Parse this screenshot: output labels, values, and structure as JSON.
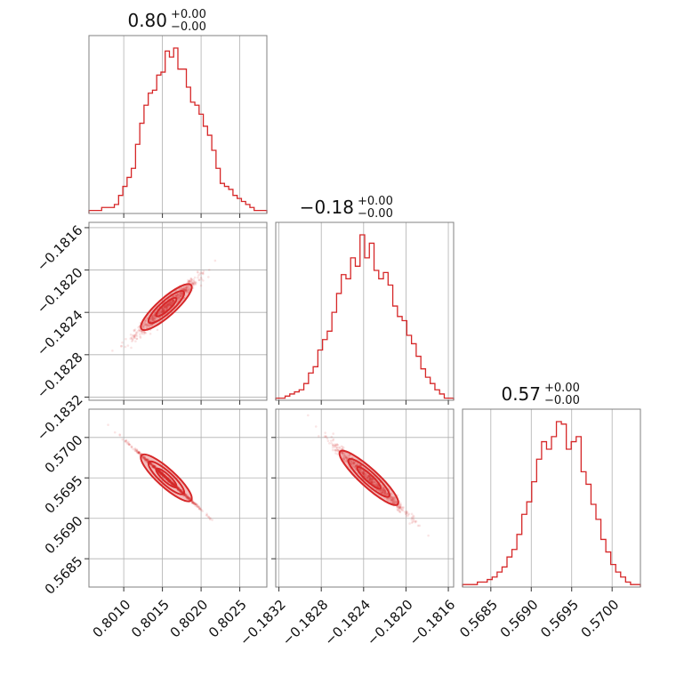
{
  "colors": {
    "series": "#d62728",
    "grid": "#b0b0b0",
    "frame": "#808080",
    "fill": "rgba(214,39,40,0.30)",
    "points": "rgba(214,39,40,0.12)"
  },
  "chart_data": {
    "type": "corner",
    "grid": true,
    "parameters": [
      {
        "title": "0.80",
        "err_plus": "+0.00",
        "err_minus": "−0.00",
        "range": [
          0.80055,
          0.80285
        ],
        "ticks": [
          0.801,
          0.8015,
          0.802,
          0.8025
        ],
        "tick_labels": [
          "0.8010",
          "0.8015",
          "0.8020",
          "0.8025"
        ],
        "hist_counts": [
          1,
          1,
          1,
          2,
          2,
          2,
          3,
          6,
          9,
          12,
          15,
          23,
          30,
          36,
          40,
          41,
          46,
          47,
          54,
          52,
          55,
          48,
          48,
          42,
          37,
          36,
          33,
          29,
          26,
          21,
          15,
          10,
          9,
          8,
          6,
          5,
          4,
          3,
          2,
          1,
          1,
          1
        ]
      },
      {
        "title": "−0.18",
        "err_plus": "+0.00",
        "err_minus": "−0.00",
        "range": [
          -0.18323,
          -0.18155
        ],
        "ticks": [
          -0.1832,
          -0.1828,
          -0.1824,
          -0.182,
          -0.1816
        ],
        "tick_labels": [
          "−0.1832",
          "−0.1828",
          "−0.1824",
          "−0.1820",
          "−0.1816"
        ],
        "hist_counts": [
          1,
          1,
          2,
          3,
          4,
          5,
          8,
          13,
          16,
          24,
          29,
          33,
          42,
          51,
          60,
          58,
          68,
          64,
          79,
          68,
          75,
          62,
          58,
          61,
          55,
          45,
          40,
          38,
          31,
          27,
          21,
          15,
          11,
          8,
          5,
          3,
          1,
          1
        ]
      },
      {
        "title": "0.57",
        "err_plus": "+0.00",
        "err_minus": "−0.00",
        "range": [
          0.56815,
          0.57035
        ],
        "ticks": [
          0.5685,
          0.569,
          0.5695,
          0.57
        ],
        "tick_labels": [
          "0.5685",
          "0.5690",
          "0.5695",
          "0.5700"
        ],
        "hist_counts": [
          1,
          1,
          1,
          2,
          2,
          3,
          4,
          6,
          8,
          12,
          15,
          21,
          29,
          34,
          42,
          51,
          58,
          55,
          60,
          66,
          65,
          55,
          58,
          60,
          46,
          41,
          33,
          27,
          19,
          14,
          9,
          6,
          4,
          2,
          1,
          1
        ]
      }
    ],
    "correlations": {
      "p1_vs_p0": {
        "slope": 0.65,
        "intercept_at": [
          0.80155,
          -0.18235
        ],
        "spread": 3.5e-05
      },
      "p2_vs_p0": {
        "slope": -0.87,
        "intercept_at": [
          0.80155,
          0.5695
        ],
        "spread": 1e-05
      },
      "p2_vs_p1": {
        "slope": -1.2,
        "intercept_at": [
          -0.18235,
          0.5695
        ],
        "spread": 4e-05
      }
    },
    "samples_per_panel": 900
  }
}
